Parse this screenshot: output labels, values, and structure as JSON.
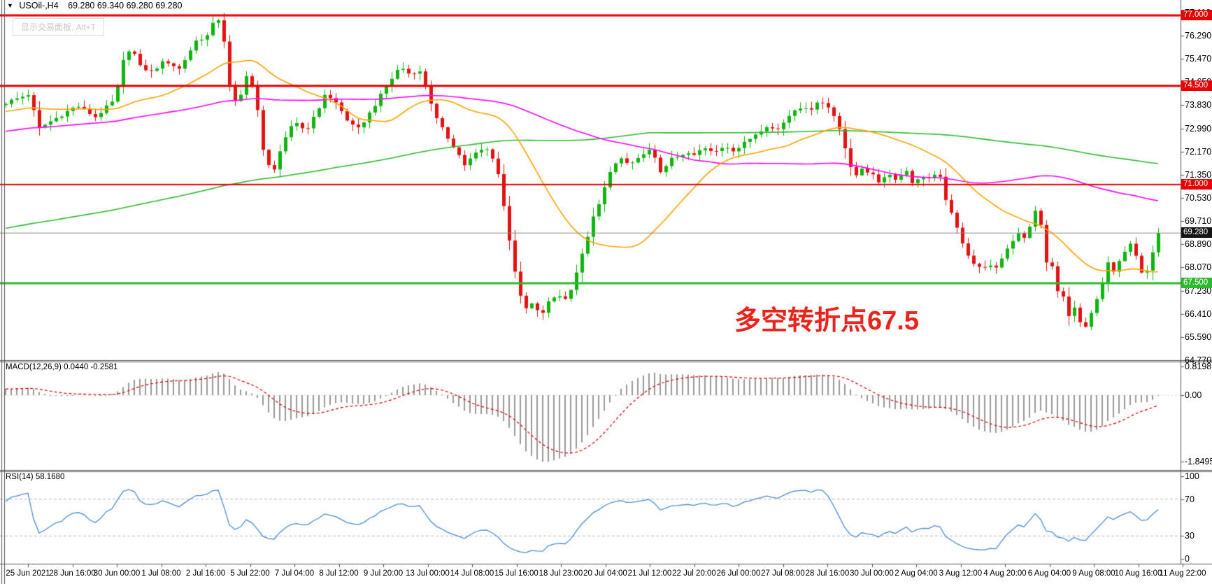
{
  "header": {
    "dropdown_icon": "▼",
    "symbol": "USOil-,H4",
    "ohlc": "69.280 69.340 69.280 69.280"
  },
  "watermark": {
    "text": "显示交易面板, Alt+T"
  },
  "annotation": {
    "text": "多空转折点67.5",
    "color": "#e8241c"
  },
  "indicators": {
    "macd_label": "MACD(12,26,9) 0.0440 -0.2581",
    "rsi_label": "RSI(14) 58.1680"
  },
  "chart_data": {
    "type": "candlestick",
    "symbol": "USOil-",
    "timeframe": "H4",
    "current_bar": {
      "open": 69.28,
      "high": 69.34,
      "low": 69.28,
      "close": 69.28
    },
    "colors": {
      "bull": "#0fb40f",
      "bear": "#e31212",
      "ma_magenta": "#ff00ff",
      "ma_orange": "#ffa200",
      "ma_green": "#2db92d",
      "macd_hist": "#9a9a9a",
      "macd_signal": "#d40000",
      "rsi_line": "#4a8bd4",
      "level_red": "#e60000",
      "level_green": "#2db92d",
      "current_price_line": "#8a8a8a"
    },
    "moving_averages": [
      {
        "name": "slow-green",
        "period": 200,
        "color": "#2db92d"
      },
      {
        "name": "medium-magenta",
        "period": 84,
        "color": "#ff00ff"
      },
      {
        "name": "fast-orange",
        "period": 24,
        "color": "#ffa200"
      }
    ],
    "levels": [
      {
        "label": "77.000",
        "price": 77.0,
        "line_color": "#e60000",
        "badge_bg": "#e60000",
        "line_width": 3
      },
      {
        "label": "74.500",
        "price": 74.5,
        "line_color": "#e60000",
        "badge_bg": "#e60000",
        "line_width": 3
      },
      {
        "label": "71.000",
        "price": 71.0,
        "line_color": "#e60000",
        "badge_bg": "#e60000",
        "line_width": 2
      },
      {
        "label": "69.280",
        "price": 69.28,
        "line_color": "#8a8a8a",
        "badge_bg": "#141414",
        "line_width": 1
      },
      {
        "label": "67.500",
        "price": 67.5,
        "line_color": "#2db92d",
        "badge_bg": "#2db92d",
        "line_width": 3
      }
    ],
    "price_ticks": [
      "77.110",
      "76.290",
      "75.470",
      "74.650",
      "73.830",
      "72.990",
      "72.170",
      "71.350",
      "70.530",
      "69.710",
      "68.890",
      "68.070",
      "67.230",
      "66.410",
      "65.590",
      "64.770"
    ],
    "macd": {
      "params": [
        12,
        26,
        9
      ],
      "value": "0.0440",
      "signal": "-0.2581"
    },
    "rsi": {
      "period": 14,
      "value": "58.1680",
      "levels": [
        70,
        30
      ]
    },
    "macd_ticks": [
      "0.8198",
      "0.00",
      "-1.8495"
    ],
    "rsi_ticks": [
      "100",
      "70",
      "30",
      "0"
    ],
    "time_labels": [
      "25 Jun 2021",
      "28 Jun 16:00",
      "30 Jun 00:00",
      "1 Jul 08:00",
      "2 Jul 16:00",
      "5 Jul 22:00",
      "7 Jul 04:00",
      "8 Jul 12:00",
      "9 Jul 20:00",
      "13 Jul 00:00",
      "14 Jul 08:00",
      "15 Jul 16:00",
      "18 Jul 23:00",
      "20 Jul 04:00",
      "21 Jul 12:00",
      "22 Jul 20:00",
      "26 Jul 00:00",
      "27 Jul 08:00",
      "28 Jul 16:00",
      "30 Jul 00:00",
      "2 Aug 04:00",
      "3 Aug 12:00",
      "4 Aug 20:00",
      "6 Aug 04:00",
      "9 Aug 08:00",
      "10 Aug 16:00",
      "11 Aug 22:00"
    ],
    "price_path_anchors": [
      [
        8,
        73.9
      ],
      [
        40,
        74.2
      ],
      [
        56,
        73.0
      ],
      [
        76,
        73.3
      ],
      [
        110,
        73.8
      ],
      [
        136,
        73.4
      ],
      [
        164,
        74.0
      ],
      [
        178,
        75.6
      ],
      [
        188,
        75.9
      ],
      [
        198,
        75.2
      ],
      [
        216,
        75.0
      ],
      [
        236,
        75.4
      ],
      [
        256,
        75.1
      ],
      [
        280,
        76.1
      ],
      [
        298,
        76.3
      ],
      [
        310,
        77.05
      ],
      [
        320,
        76.1
      ],
      [
        330,
        74.1
      ],
      [
        340,
        73.8
      ],
      [
        352,
        74.9
      ],
      [
        364,
        74.3
      ],
      [
        376,
        72.2
      ],
      [
        390,
        71.4
      ],
      [
        404,
        72.4
      ],
      [
        420,
        73.3
      ],
      [
        436,
        72.9
      ],
      [
        452,
        73.5
      ],
      [
        464,
        74.2
      ],
      [
        480,
        73.9
      ],
      [
        496,
        73.3
      ],
      [
        510,
        72.9
      ],
      [
        530,
        73.6
      ],
      [
        550,
        74.4
      ],
      [
        572,
        75.2
      ],
      [
        586,
        74.9
      ],
      [
        598,
        75.1
      ],
      [
        610,
        74.4
      ],
      [
        622,
        73.4
      ],
      [
        636,
        72.8
      ],
      [
        650,
        72.3
      ],
      [
        664,
        71.7
      ],
      [
        680,
        72.1
      ],
      [
        694,
        72.3
      ],
      [
        706,
        71.9
      ],
      [
        714,
        71.2
      ],
      [
        722,
        69.9
      ],
      [
        732,
        68.5
      ],
      [
        742,
        67.1
      ],
      [
        752,
        66.6
      ],
      [
        762,
        66.8
      ],
      [
        772,
        66.3
      ],
      [
        786,
        66.9
      ],
      [
        798,
        67.1
      ],
      [
        810,
        66.9
      ],
      [
        820,
        67.6
      ],
      [
        832,
        68.5
      ],
      [
        846,
        69.7
      ],
      [
        858,
        70.4
      ],
      [
        872,
        71.5
      ],
      [
        886,
        71.9
      ],
      [
        900,
        71.7
      ],
      [
        916,
        72.0
      ],
      [
        930,
        72.2
      ],
      [
        946,
        71.4
      ],
      [
        960,
        71.9
      ],
      [
        976,
        72.1
      ],
      [
        990,
        72.0
      ],
      [
        1006,
        72.3
      ],
      [
        1020,
        72.1
      ],
      [
        1036,
        72.4
      ],
      [
        1050,
        72.2
      ],
      [
        1066,
        72.5
      ],
      [
        1080,
        72.8
      ],
      [
        1096,
        73.1
      ],
      [
        1110,
        72.9
      ],
      [
        1126,
        73.4
      ],
      [
        1140,
        73.8
      ],
      [
        1156,
        73.6
      ],
      [
        1170,
        74.0
      ],
      [
        1186,
        73.7
      ],
      [
        1198,
        73.2
      ],
      [
        1208,
        72.3
      ],
      [
        1220,
        71.2
      ],
      [
        1232,
        71.6
      ],
      [
        1244,
        71.4
      ],
      [
        1256,
        71.1
      ],
      [
        1268,
        71.4
      ],
      [
        1282,
        71.2
      ],
      [
        1296,
        71.5
      ],
      [
        1306,
        71.0
      ],
      [
        1318,
        71.3
      ],
      [
        1330,
        71.2
      ],
      [
        1342,
        71.4
      ],
      [
        1352,
        70.5
      ],
      [
        1362,
        69.8
      ],
      [
        1372,
        69.2
      ],
      [
        1382,
        68.6
      ],
      [
        1392,
        68.2
      ],
      [
        1402,
        68.0
      ],
      [
        1412,
        68.2
      ],
      [
        1422,
        67.9
      ],
      [
        1432,
        68.4
      ],
      [
        1444,
        68.9
      ],
      [
        1456,
        69.3
      ],
      [
        1466,
        69.1
      ],
      [
        1474,
        69.6
      ],
      [
        1482,
        70.2
      ],
      [
        1490,
        69.4
      ],
      [
        1496,
        68.2
      ],
      [
        1504,
        68.1
      ],
      [
        1512,
        67.2
      ],
      [
        1520,
        67.0
      ],
      [
        1528,
        66.4
      ],
      [
        1536,
        66.6
      ],
      [
        1544,
        66.1
      ],
      [
        1552,
        65.9
      ],
      [
        1560,
        66.4
      ],
      [
        1568,
        66.9
      ],
      [
        1576,
        67.5
      ],
      [
        1584,
        68.2
      ],
      [
        1592,
        67.9
      ],
      [
        1600,
        68.3
      ],
      [
        1608,
        68.6
      ],
      [
        1616,
        68.9
      ],
      [
        1626,
        68.3
      ],
      [
        1634,
        67.7
      ],
      [
        1642,
        68.1
      ],
      [
        1650,
        68.8
      ],
      [
        1656,
        69.28
      ]
    ]
  }
}
